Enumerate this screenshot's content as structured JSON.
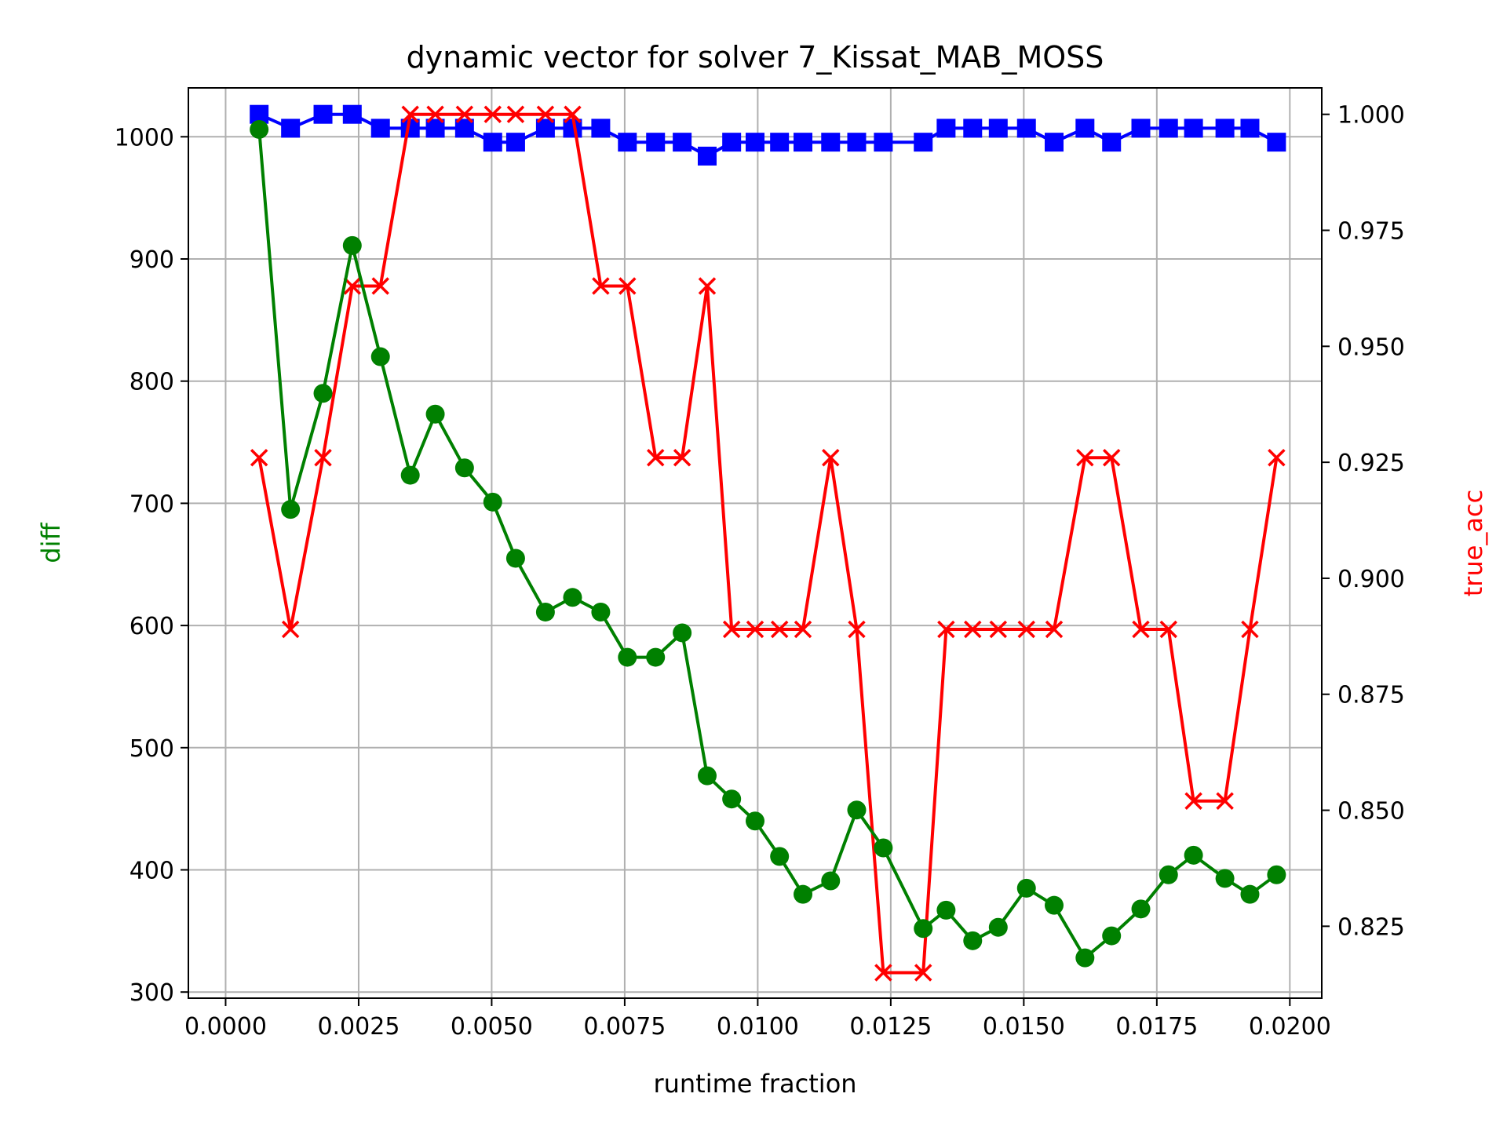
{
  "chart_data": {
    "type": "line",
    "title": "dynamic vector for solver 7_Kissat_MAB_MOSS",
    "xlabel": "runtime fraction",
    "ylabel_left": "diff",
    "ylabel_right": "true_acc",
    "xlim": [
      -0.0007,
      0.0206
    ],
    "ylim_left": [
      295,
      1040
    ],
    "ylim_right": [
      0.8095,
      1.0057
    ],
    "grid": true,
    "x_ticks": [
      0.0,
      0.0025,
      0.005,
      0.0075,
      0.01,
      0.0125,
      0.015,
      0.0175,
      0.02
    ],
    "x_tick_labels": [
      "0.0000",
      "0.0025",
      "0.0050",
      "0.0075",
      "0.0100",
      "0.0125",
      "0.0150",
      "0.0175",
      "0.0200"
    ],
    "y_left_ticks": [
      300,
      400,
      500,
      600,
      700,
      800,
      900,
      1000
    ],
    "y_left_tick_labels": [
      "300",
      "400",
      "500",
      "600",
      "700",
      "800",
      "900",
      "1000"
    ],
    "y_right_ticks": [
      0.825,
      0.85,
      0.875,
      0.9,
      0.925,
      0.95,
      0.975,
      1.0
    ],
    "y_right_tick_labels": [
      "0.825",
      "0.850",
      "0.875",
      "0.900",
      "0.925",
      "0.950",
      "0.975",
      "1.000"
    ],
    "colors": {
      "diff": "#008000",
      "true_acc": "#ff0000",
      "blue_series": "#0000ff",
      "grid": "#b0b0b0"
    },
    "x": [
      0.00063,
      0.00122,
      0.00183,
      0.00238,
      0.00291,
      0.00347,
      0.00394,
      0.00449,
      0.00502,
      0.00545,
      0.00601,
      0.00652,
      0.00705,
      0.00755,
      0.00808,
      0.00858,
      0.00905,
      0.00951,
      0.00995,
      0.01041,
      0.01085,
      0.01137,
      0.01186,
      0.01236,
      0.01311,
      0.01354,
      0.01404,
      0.01452,
      0.01505,
      0.01557,
      0.01615,
      0.01665,
      0.0172,
      0.01772,
      0.01819,
      0.01878,
      0.01925,
      0.01975
    ],
    "series": [
      {
        "axis": "left",
        "marker": "circle",
        "color": "#008000",
        "values": [
          1006,
          695,
          790,
          911,
          820,
          723,
          773,
          729,
          701,
          655,
          611,
          623,
          611,
          574,
          574,
          594,
          477,
          458,
          440,
          411,
          380,
          391,
          449,
          418,
          352,
          367,
          342,
          353,
          385,
          371,
          328,
          346,
          368,
          396,
          412,
          393,
          380,
          396
        ]
      },
      {
        "axis": "right",
        "marker": "x",
        "color": "#ff0000",
        "values": [
          0.926,
          0.889,
          0.926,
          0.963,
          0.963,
          1.0,
          1.0,
          1.0,
          1.0,
          1.0,
          1.0,
          1.0,
          0.963,
          0.963,
          0.926,
          0.926,
          0.963,
          0.889,
          0.889,
          0.889,
          0.889,
          0.926,
          0.889,
          0.815,
          0.815,
          0.889,
          0.889,
          0.889,
          0.889,
          0.889,
          0.926,
          0.926,
          0.889,
          0.889,
          0.852,
          0.852,
          0.889,
          0.926
        ]
      },
      {
        "axis": "right",
        "marker": "square",
        "color": "#0000ff",
        "values": [
          1.0,
          0.997,
          1.0,
          1.0,
          0.997,
          0.997,
          0.997,
          0.997,
          0.994,
          0.994,
          0.997,
          0.997,
          0.997,
          0.994,
          0.994,
          0.994,
          0.991,
          0.994,
          0.994,
          0.994,
          0.994,
          0.994,
          0.994,
          0.994,
          0.994,
          0.997,
          0.997,
          0.997,
          0.997,
          0.994,
          0.997,
          0.994,
          0.997,
          0.997,
          0.997,
          0.997,
          0.997,
          0.994
        ]
      }
    ]
  }
}
